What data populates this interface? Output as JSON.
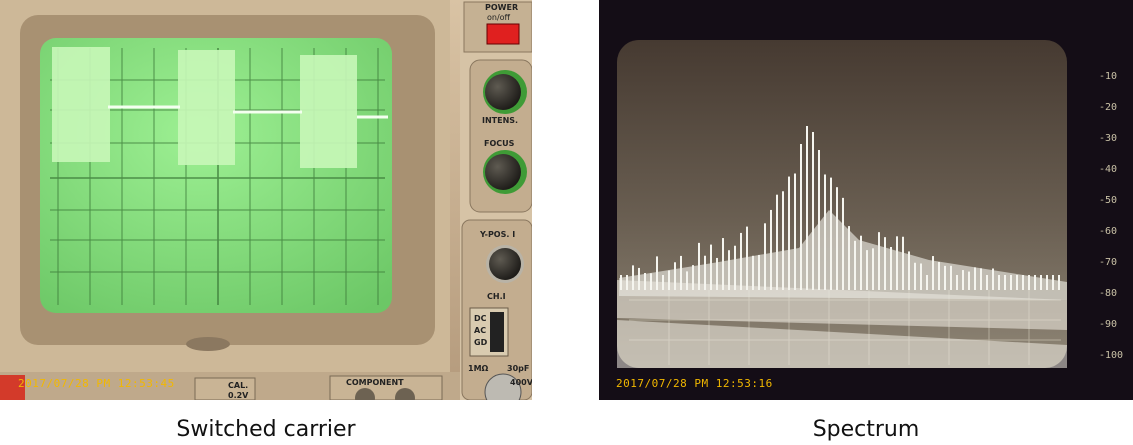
{
  "left_photo": {
    "timestamp": "2017/07/28 PM 12:53:45",
    "panel": {
      "power_label": "POWER",
      "power_sub": "on/off",
      "intens_label": "INTENS.",
      "focus_label": "FOCUS",
      "ypos_label": "Y-POS. I",
      "ch_label": "CH.I",
      "coupling": [
        "DC",
        "AC",
        "GD"
      ],
      "impedance": "1MΩ",
      "capacitance": "30pF",
      "voltage": "400V",
      "cal_label": "CAL.",
      "cal_value": "0.2V",
      "component_label": "COMPONENT"
    },
    "trace_color": "#eaffe0",
    "screen_color": "#8fe08a"
  },
  "right_photo": {
    "timestamp": "2017/07/28 PM 12:53:16",
    "db_scale": [
      "-10",
      "-20",
      "-30",
      "-40",
      "-50",
      "-60",
      "-70",
      "-80",
      "-90",
      "-100"
    ],
    "trace_color": "#f4f4ef"
  },
  "captions": {
    "left": "Switched carrier",
    "right": "Spectrum"
  }
}
